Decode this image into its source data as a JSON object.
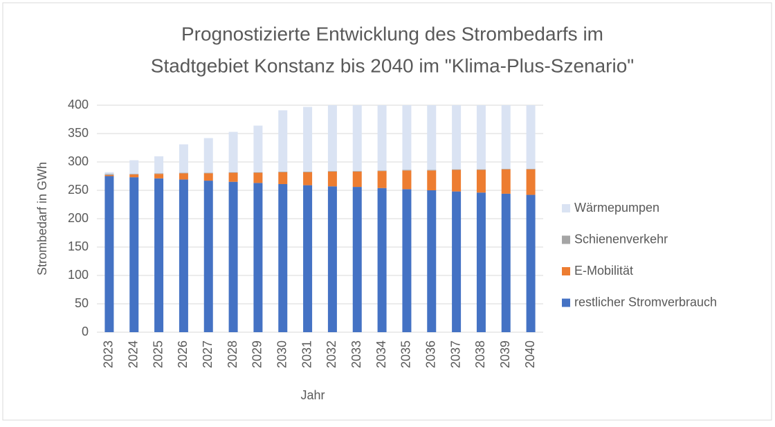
{
  "chart_data": {
    "type": "bar",
    "stacked": true,
    "title": [
      "Prognostizierte Entwicklung des Strombedarfs im",
      "Stadtgebiet Konstanz bis 2040 im \"Klima-Plus-Szenario\""
    ],
    "x_label": "Jahr",
    "y_label": "Strombedarf in GWh",
    "categories": [
      "2023",
      "2024",
      "2025",
      "2026",
      "2027",
      "2028",
      "2029",
      "2030",
      "2031",
      "2032",
      "2033",
      "2034",
      "2035",
      "2036",
      "2037",
      "2038",
      "2039",
      "2040"
    ],
    "series": [
      {
        "name": "restlicher Stromverbrauch",
        "color": "#4472c4",
        "values": [
          275,
          273,
          271,
          269,
          267,
          265,
          263,
          261,
          259,
          257,
          256,
          254,
          252,
          250,
          248,
          246,
          244,
          242
        ]
      },
      {
        "name": "E-Mobilität",
        "color": "#ed7d31",
        "values": [
          2,
          5,
          8,
          11,
          13,
          16,
          18,
          21,
          23,
          26,
          27,
          30,
          33,
          35,
          38,
          40,
          43,
          45
        ]
      },
      {
        "name": "Schienenverkehr",
        "color": "#a5a5a5",
        "values": [
          2,
          1,
          1,
          1,
          1,
          1,
          1,
          1,
          1,
          1,
          1,
          1,
          1,
          1,
          1,
          1,
          1,
          1
        ]
      },
      {
        "name": "Wärmepumpen",
        "color": "#dae3f3",
        "values": [
          3,
          24,
          30,
          50,
          61,
          71,
          82,
          108,
          114,
          116,
          116,
          115,
          114,
          114,
          113,
          113,
          112,
          112
        ]
      }
    ],
    "ylim": [
      0,
      400
    ],
    "yticks": [
      0,
      50,
      100,
      150,
      200,
      250,
      300,
      350,
      400
    ],
    "grid": true,
    "legend": "right"
  }
}
